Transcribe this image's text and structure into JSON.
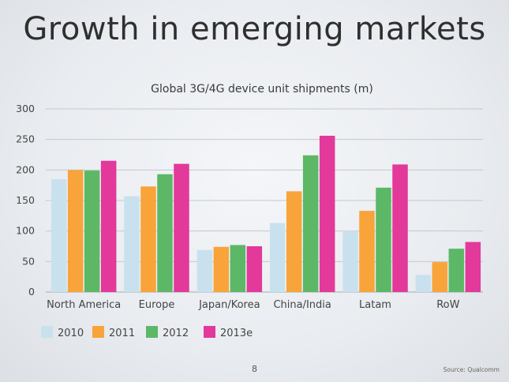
{
  "slide": {
    "title": "Growth in emerging markets",
    "page_number": "8",
    "source": "Source: Qualcomm"
  },
  "chart_data": {
    "type": "bar",
    "title": "Global 3G/4G device unit shipments (m)",
    "categories": [
      "North America",
      "Europe",
      "Japan/Korea",
      "China/India",
      "Latam",
      "RoW"
    ],
    "series": [
      {
        "name": "2010",
        "color": "#c9e1ee",
        "values": [
          185,
          157,
          69,
          113,
          100,
          28
        ]
      },
      {
        "name": "2011",
        "color": "#f8a43a",
        "values": [
          200,
          173,
          74,
          165,
          133,
          49
        ]
      },
      {
        "name": "2012",
        "color": "#5cb866",
        "values": [
          199,
          193,
          77,
          224,
          171,
          71
        ]
      },
      {
        "name": "2013e",
        "color": "#e2399a",
        "values": [
          215,
          210,
          75,
          256,
          209,
          82
        ]
      }
    ],
    "ylim": [
      0,
      300
    ],
    "yticks": [
      0,
      50,
      100,
      150,
      200,
      250,
      300
    ],
    "grid": true,
    "legend_position": "bottom-left"
  }
}
